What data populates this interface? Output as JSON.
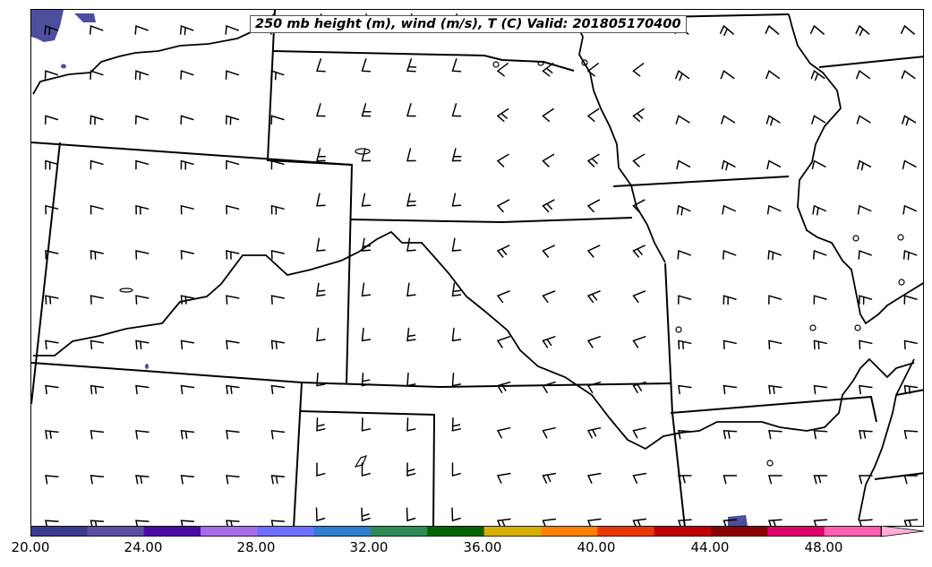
{
  "title": "250 mb height (m), wind (m/s), T (C) Valid: 201805170400",
  "colorbar": {
    "tick_labels": [
      "20.00",
      "24.00",
      "28.00",
      "32.00",
      "36.00",
      "40.00",
      "44.00",
      "48.00"
    ],
    "colors": [
      "#3b3b8f",
      "#5a4fa0",
      "#4a0aa8",
      "#a86be8",
      "#6f6fff",
      "#2e7fcf",
      "#2e8b57",
      "#006400",
      "#d4b000",
      "#ff8000",
      "#e83800",
      "#c00000",
      "#8b0000",
      "#e0006a",
      "#ff60b0",
      "#ffb0d8"
    ],
    "extend": "max",
    "range": [
      20,
      52
    ]
  },
  "map": {
    "region": "Central United States",
    "features": [
      "state boundaries",
      "coastlines/rivers",
      "wind barbs",
      "temperature shading"
    ],
    "shaded_areas": "sparse temperature shading near 20-22 C"
  }
}
